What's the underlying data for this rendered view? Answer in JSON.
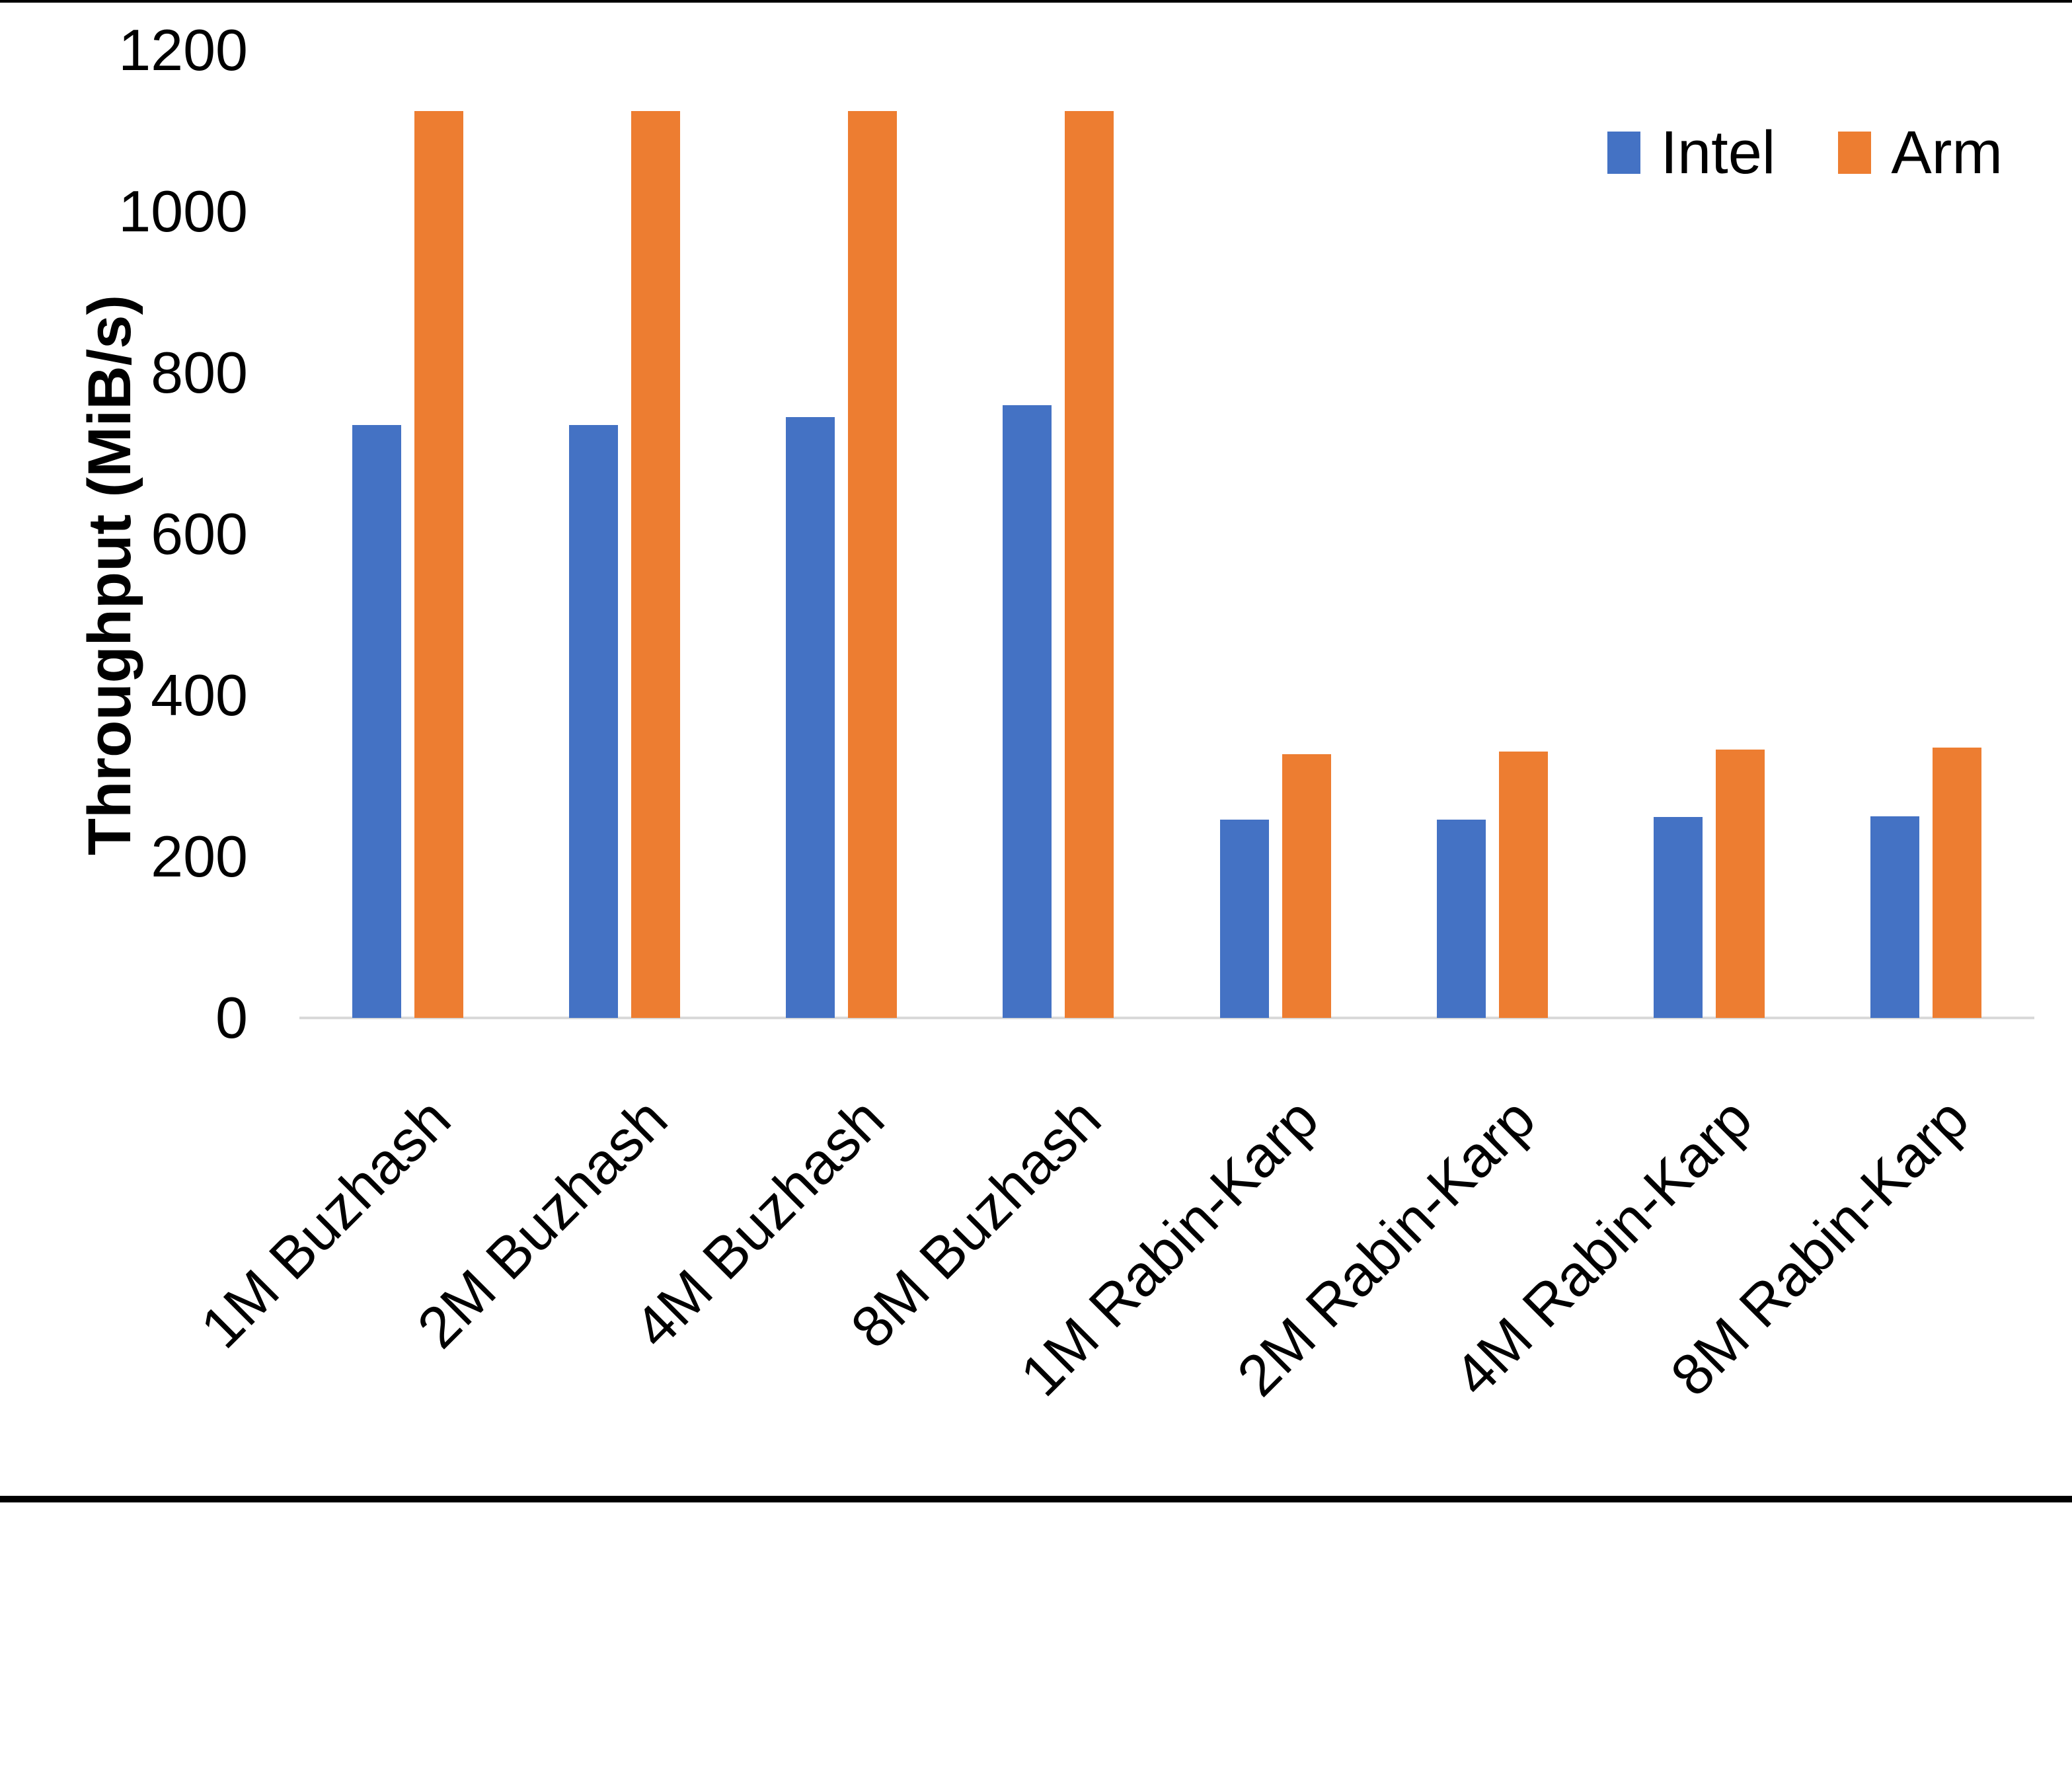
{
  "page": {
    "background": "#ffffff",
    "top_border_color": "#000000",
    "bottom_bar_color": "#000000"
  },
  "chart_data": {
    "type": "bar",
    "title": "",
    "categories": [
      "1M Buzhash",
      "2M Buzhash",
      "4M Buzhash",
      "8M Buzhash",
      "1M Rabin-Karp",
      "2M Rabin-Karp",
      "4M Rabin-Karp",
      "8M Rabin-Karp"
    ],
    "series": [
      {
        "name": "Intel",
        "color": "#4472C4",
        "values": [
          735,
          735,
          745,
          760,
          246,
          246,
          249,
          250
        ]
      },
      {
        "name": "Arm",
        "color": "#ED7D31",
        "values": [
          1125,
          1125,
          1125,
          1125,
          327,
          330,
          333,
          335
        ]
      }
    ],
    "ylabel": "Throughput (MiB/s)",
    "xlabel": "",
    "yticks": [
      0,
      200,
      400,
      600,
      800,
      1000,
      1200
    ],
    "ylim": [
      0,
      1200
    ],
    "grid": false,
    "legend_position": "top-right",
    "axis_line_color": "#D9D9D9",
    "text_color": "#000000"
  }
}
